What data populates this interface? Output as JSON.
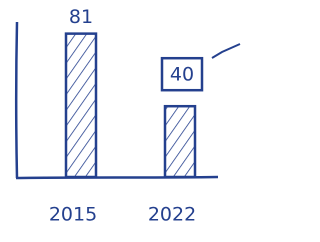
{
  "chart_data": {
    "type": "bar",
    "categories": [
      "2015",
      "2022"
    ],
    "values": [
      81,
      40
    ],
    "color": "#24408e",
    "ylim": [
      0,
      100
    ]
  }
}
